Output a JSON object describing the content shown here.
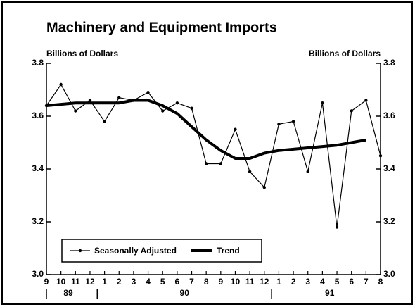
{
  "chart_data": {
    "type": "line",
    "title": "Machinery and Equipment Imports",
    "y_axis_label": "Billions of Dollars",
    "y2_axis_label": "Billions of Dollars",
    "categories": [
      "9",
      "10",
      "11",
      "12",
      "1",
      "2",
      "3",
      "4",
      "5",
      "6",
      "7",
      "8",
      "9",
      "10",
      "11",
      "12",
      "1",
      "2",
      "3",
      "4",
      "5",
      "6",
      "7",
      "8"
    ],
    "year_labels": [
      "89",
      "90",
      "91"
    ],
    "series": [
      {
        "name": "Seasonally Adjusted",
        "color": "#000000",
        "values": [
          3.64,
          3.72,
          3.62,
          3.66,
          3.58,
          3.67,
          3.66,
          3.69,
          3.62,
          3.65,
          3.63,
          3.42,
          3.42,
          3.55,
          3.39,
          3.33,
          3.57,
          3.58,
          3.39,
          3.65,
          3.18,
          3.62,
          3.66,
          3.45
        ]
      },
      {
        "name": "Trend",
        "color": "#000000",
        "values": [
          3.64,
          3.645,
          3.65,
          3.65,
          3.65,
          3.65,
          3.66,
          3.66,
          3.64,
          3.61,
          3.56,
          3.51,
          3.47,
          3.44,
          3.44,
          3.46,
          3.47,
          3.475,
          3.48,
          3.485,
          3.49,
          3.5,
          3.51,
          null
        ]
      }
    ],
    "ylim": [
      3.0,
      3.8
    ],
    "yticks": [
      {
        "value": 3,
        "label": "3.0"
      },
      3.2,
      3.4,
      3.6,
      3.8
    ],
    "y2lim": [
      3.0,
      3.8
    ],
    "y2ticks": [
      {
        "value": 3,
        "label": "3.0"
      },
      3.2,
      3.4,
      3.6,
      3.8
    ],
    "legend": "lower left"
  }
}
